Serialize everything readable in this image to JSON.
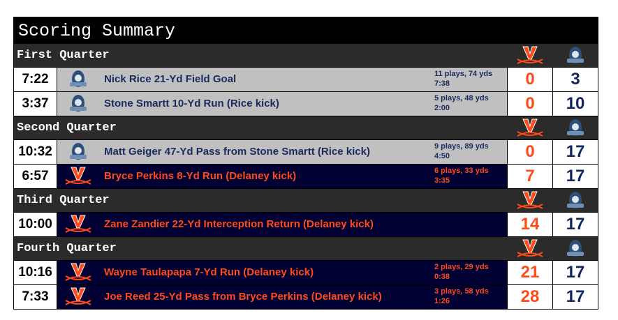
{
  "title": "Scoring Summary",
  "colors": {
    "uva_orange": "#ff4a1a",
    "odu_navy": "#13275a",
    "header_bg": "#2b2b2b"
  },
  "icons": {
    "uva": "uva-v-sabres-logo",
    "odu": "odu-monarch-logo"
  },
  "quarters": [
    {
      "label": "First Quarter",
      "plays": [
        {
          "team": "odu",
          "time": "7:22",
          "desc": "Nick Rice 21-Yd Field Goal",
          "drive": "11 plays, 74 yds",
          "top": "7:38",
          "uva": "0",
          "odu": "3"
        },
        {
          "team": "odu",
          "time": "3:37",
          "desc": "Stone Smartt 10-Yd Run (Rice kick)",
          "drive": "5 plays, 48 yds",
          "top": "2:00",
          "uva": "0",
          "odu": "10"
        }
      ]
    },
    {
      "label": "Second Quarter",
      "plays": [
        {
          "team": "odu",
          "time": "10:32",
          "desc": "Matt Geiger 47-Yd Pass from Stone Smartt (Rice kick)",
          "drive": "9 plays, 89 yds",
          "top": "4:50",
          "uva": "0",
          "odu": "17"
        },
        {
          "team": "uva",
          "time": "6:57",
          "desc": "Bryce Perkins 8-Yd Run (Delaney kick)",
          "drive": "6 plays, 33 yds",
          "top": "3:35",
          "uva": "7",
          "odu": "17"
        }
      ]
    },
    {
      "label": "Third Quarter",
      "plays": [
        {
          "team": "uva",
          "time": "10:00",
          "desc": "Zane Zandier 22-Yd Interception Return (Delaney kick)",
          "uva": "14",
          "odu": "17"
        }
      ]
    },
    {
      "label": "Fourth Quarter",
      "plays": [
        {
          "team": "uva",
          "time": "10:16",
          "desc": "Wayne Taulapapa 7-Yd Run (Delaney kick)",
          "drive": "2 plays, 29 yds",
          "top": "0:38",
          "uva": "21",
          "odu": "17"
        },
        {
          "team": "uva",
          "time": "7:33",
          "desc": "Joe Reed 25-Yd Pass from Bryce Perkins (Delaney kick)",
          "drive": "3 plays, 58 yds",
          "top": "1:26",
          "uva": "28",
          "odu": "17"
        }
      ]
    }
  ]
}
